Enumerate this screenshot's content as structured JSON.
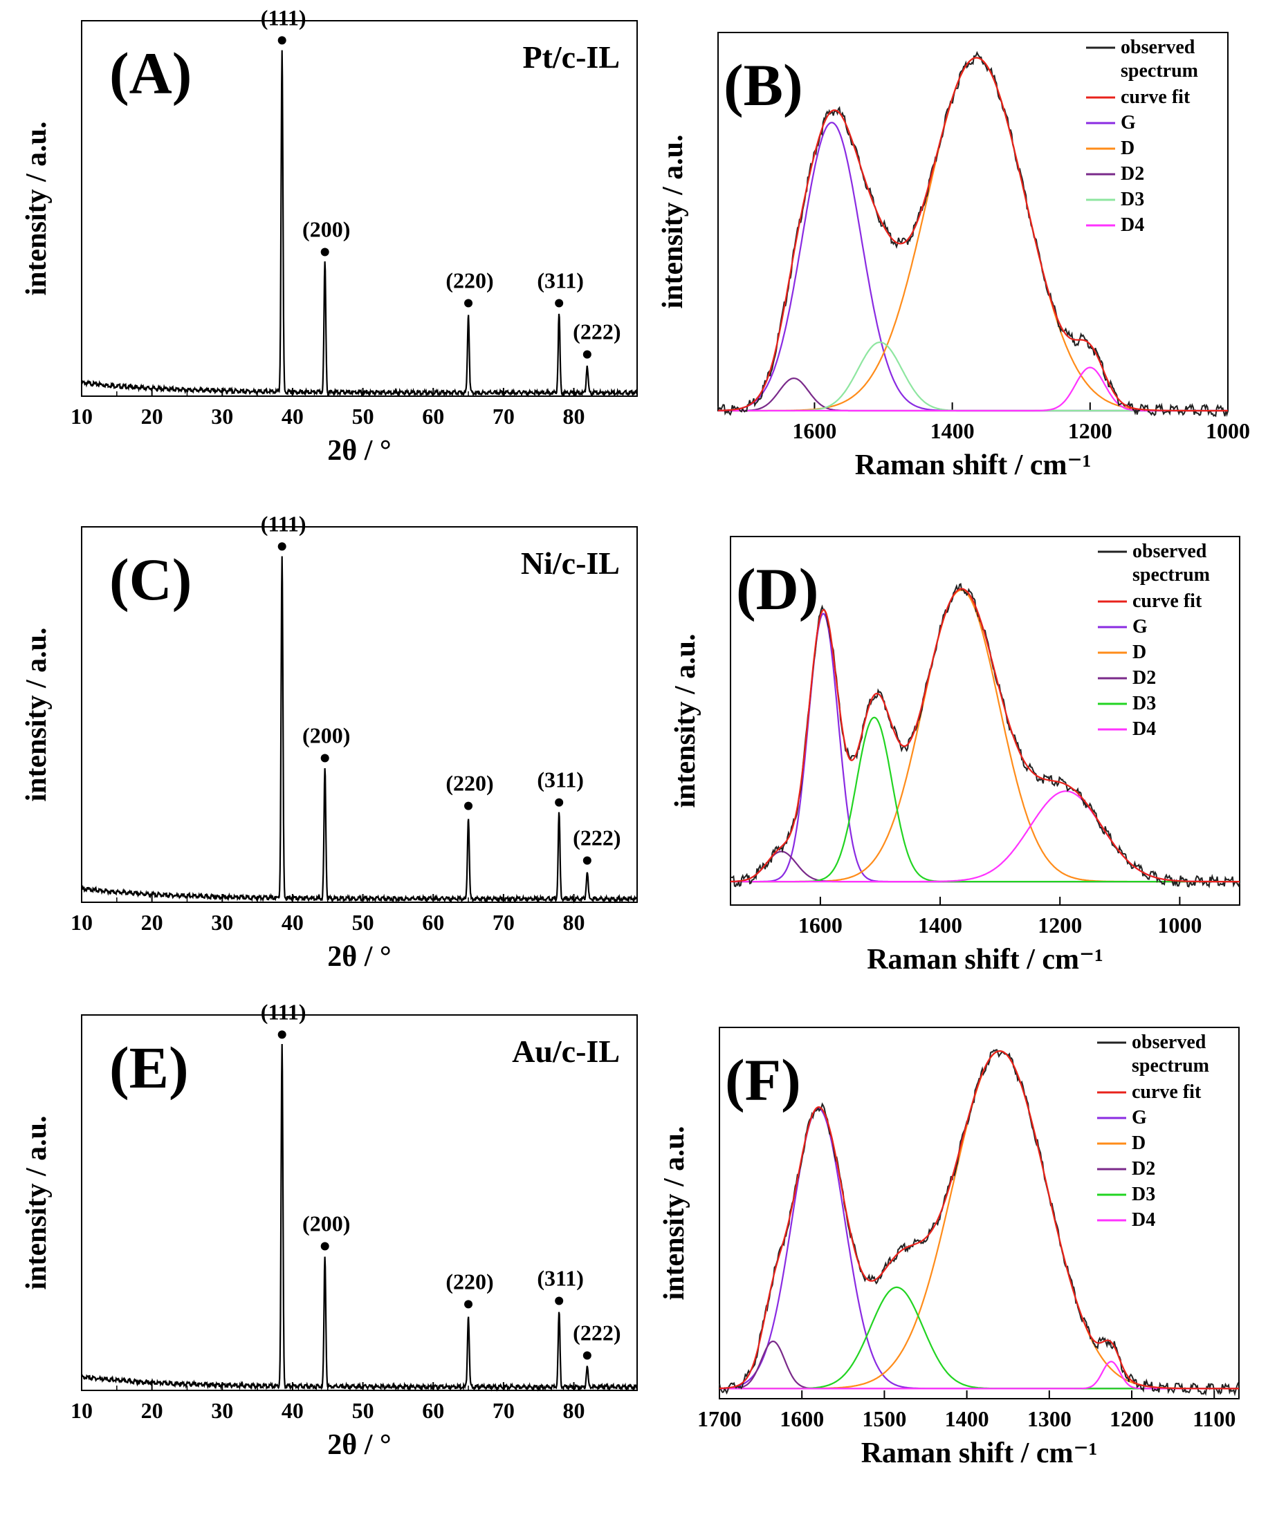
{
  "chart_data": [
    {
      "id": "A",
      "type": "line",
      "kind": "xrd",
      "panel_label": "(A)",
      "sample": "Pt/c-IL",
      "xlabel": "2θ / °",
      "ylabel": "intensity / a.u.",
      "xlim": [
        10,
        89
      ],
      "ylim": [
        0,
        110
      ],
      "x_ticks": [
        10,
        20,
        30,
        40,
        50,
        60,
        70,
        80
      ],
      "baseline": {
        "start": 4,
        "end": 1
      },
      "peaks": [
        {
          "hkl": "(111)",
          "x": 38.5,
          "height": 100
        },
        {
          "hkl": "(200)",
          "x": 44.6,
          "height": 38
        },
        {
          "hkl": "(220)",
          "x": 65.0,
          "height": 23
        },
        {
          "hkl": "(311)",
          "x": 77.9,
          "height": 23
        },
        {
          "hkl": "(222)",
          "x": 81.9,
          "height": 8
        }
      ]
    },
    {
      "id": "B",
      "type": "line",
      "kind": "raman",
      "panel_label": "(B)",
      "xlabel": "Raman shift / cm⁻¹",
      "ylabel": "intensity / a.u.",
      "xlim": [
        1740,
        1000
      ],
      "ylim": [
        0,
        105
      ],
      "x_ticks": [
        1600,
        1400,
        1200,
        1000
      ],
      "legend": [
        "observed spectrum",
        "curve fit",
        "G",
        "D",
        "D2",
        "D3",
        "D4"
      ],
      "components": [
        {
          "name": "G",
          "color": "#8a2be2",
          "center": 1575,
          "height": 80,
          "width": 60
        },
        {
          "name": "D",
          "color": "#ff8c1a",
          "center": 1365,
          "height": 98,
          "width": 100
        },
        {
          "name": "D2",
          "color": "#7a2a8a",
          "center": 1630,
          "height": 9,
          "width": 30
        },
        {
          "name": "D3",
          "color": "#8ee6a0",
          "center": 1505,
          "height": 19,
          "width": 45
        },
        {
          "name": "D4",
          "color": "#ff33ff",
          "center": 1200,
          "height": 12,
          "width": 30
        }
      ]
    },
    {
      "id": "C",
      "type": "line",
      "kind": "xrd",
      "panel_label": "(C)",
      "sample": "Ni/c-IL",
      "xlabel": "2θ / °",
      "ylabel": "intensity / a.u.",
      "xlim": [
        10,
        89
      ],
      "ylim": [
        0,
        110
      ],
      "x_ticks": [
        10,
        20,
        30,
        40,
        50,
        60,
        70,
        80
      ],
      "baseline": {
        "start": 4,
        "end": 1
      },
      "peaks": [
        {
          "hkl": "(111)",
          "x": 38.5,
          "height": 100
        },
        {
          "hkl": "(200)",
          "x": 44.6,
          "height": 38
        },
        {
          "hkl": "(220)",
          "x": 65.0,
          "height": 24
        },
        {
          "hkl": "(311)",
          "x": 77.9,
          "height": 25
        },
        {
          "hkl": "(222)",
          "x": 81.9,
          "height": 8
        }
      ]
    },
    {
      "id": "D",
      "type": "line",
      "kind": "raman",
      "panel_label": "(D)",
      "xlabel": "Raman shift / cm⁻¹",
      "ylabel": "intensity / a.u.",
      "xlim": [
        1750,
        900
      ],
      "ylim": [
        -7,
        103
      ],
      "x_ticks": [
        1600,
        1400,
        1200,
        1000
      ],
      "legend": [
        "observed spectrum",
        "curve fit",
        "G",
        "D",
        "D2",
        "D3",
        "D4"
      ],
      "components": [
        {
          "name": "G",
          "color": "#8a2be2",
          "center": 1595,
          "height": 80,
          "width": 35
        },
        {
          "name": "D",
          "color": "#ff8c1a",
          "center": 1365,
          "height": 87,
          "width": 90
        },
        {
          "name": "D2",
          "color": "#7a2a8a",
          "center": 1665,
          "height": 9,
          "width": 35
        },
        {
          "name": "D3",
          "color": "#22d422",
          "center": 1510,
          "height": 49,
          "width": 42
        },
        {
          "name": "D4",
          "color": "#ff33ff",
          "center": 1190,
          "height": 27,
          "width": 85
        }
      ]
    },
    {
      "id": "E",
      "type": "line",
      "kind": "xrd",
      "panel_label": "(E)",
      "sample": "Au/c-IL",
      "xlabel": "2θ / °",
      "ylabel": "intensity / a.u.",
      "xlim": [
        10,
        89
      ],
      "ylim": [
        0,
        110
      ],
      "x_ticks": [
        10,
        20,
        30,
        40,
        50,
        60,
        70,
        80
      ],
      "baseline": {
        "start": 4,
        "end": 1
      },
      "peaks": [
        {
          "hkl": "(111)",
          "x": 38.5,
          "height": 100
        },
        {
          "hkl": "(200)",
          "x": 44.6,
          "height": 38
        },
        {
          "hkl": "(220)",
          "x": 65.0,
          "height": 21
        },
        {
          "hkl": "(311)",
          "x": 77.9,
          "height": 22
        },
        {
          "hkl": "(222)",
          "x": 81.9,
          "height": 6
        }
      ]
    },
    {
      "id": "F",
      "type": "line",
      "kind": "raman",
      "panel_label": "(F)",
      "xlabel": "Raman shift / cm⁻¹",
      "ylabel": "intensity / a.u.",
      "xlim": [
        1700,
        1070
      ],
      "ylim": [
        -3,
        107
      ],
      "x_ticks": [
        1700,
        1600,
        1500,
        1400,
        1300,
        1200,
        1100
      ],
      "legend": [
        "observed spectrum",
        "curve fit",
        "G",
        "D",
        "D2",
        "D3",
        "D4"
      ],
      "components": [
        {
          "name": "G",
          "color": "#8a2be2",
          "center": 1580,
          "height": 83,
          "width": 45
        },
        {
          "name": "D",
          "color": "#ff8c1a",
          "center": 1360,
          "height": 100,
          "width": 80
        },
        {
          "name": "D2",
          "color": "#7a2a8a",
          "center": 1635,
          "height": 14,
          "width": 20
        },
        {
          "name": "D3",
          "color": "#22d422",
          "center": 1485,
          "height": 30,
          "width": 45
        },
        {
          "name": "D4",
          "color": "#ff33ff",
          "center": 1225,
          "height": 8,
          "width": 15
        }
      ]
    }
  ]
}
